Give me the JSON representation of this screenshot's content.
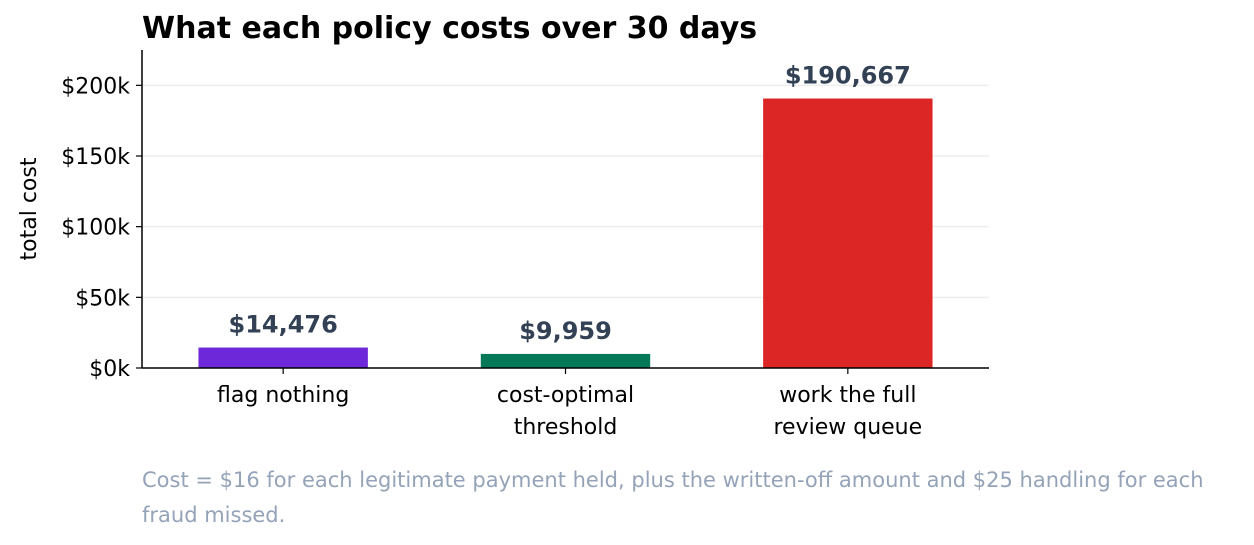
{
  "chart_data": {
    "type": "bar",
    "title": "What each policy costs over 30 days",
    "xlabel": "",
    "ylabel": "total cost",
    "categories": [
      [
        "flag nothing"
      ],
      [
        "cost-optimal",
        "threshold"
      ],
      [
        "work the full",
        "review queue"
      ]
    ],
    "values": [
      14476,
      9959,
      190667
    ],
    "data_labels": [
      "$14,476",
      "$9,959",
      "$190,667"
    ],
    "bar_colors": [
      "#6d28d9",
      "#047857",
      "#dc2626"
    ],
    "data_label_color": "#334155",
    "ylim": [
      0,
      225000
    ],
    "yticks": [
      0,
      50000,
      100000,
      150000,
      200000
    ],
    "ytick_labels": [
      "$0k",
      "$50k",
      "$100k",
      "$150k",
      "$200k"
    ],
    "grid": "horizontal",
    "grid_color": "#eeeeee"
  },
  "footnote": "Cost = $16 for each legitimate payment held, plus the written-off amount and $25 handling for each fraud missed."
}
